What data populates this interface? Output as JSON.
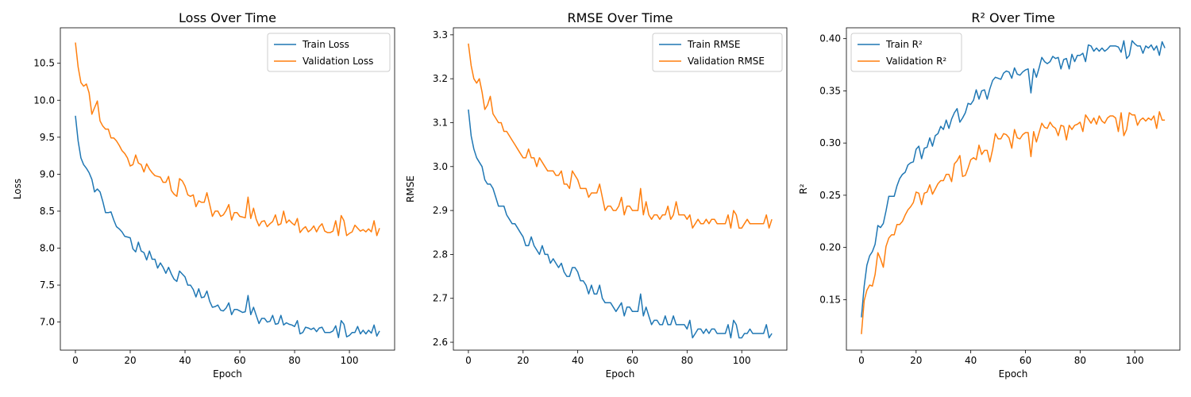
{
  "colors": {
    "train": "#1f77b4",
    "validation": "#ff7f0e"
  },
  "chart_data": [
    {
      "type": "line",
      "title": "Loss Over Time",
      "xlabel": "Epoch",
      "ylabel": "Loss",
      "xlim": [
        -5.5,
        116.5
      ],
      "ylim": [
        6.62,
        10.98
      ],
      "xticks": [
        0,
        20,
        40,
        60,
        80,
        100
      ],
      "yticks": [
        7.0,
        7.5,
        8.0,
        8.5,
        9.0,
        9.5,
        10.0,
        10.5
      ],
      "ytick_labels": [
        "7.0",
        "7.5",
        "8.0",
        "8.5",
        "9.0",
        "9.5",
        "10.0",
        "10.5"
      ],
      "legend_position": "top-right",
      "series": [
        {
          "name": "Train Loss",
          "color": "#1f77b4",
          "values": [
            9.79,
            9.45,
            9.22,
            9.13,
            9.08,
            9.02,
            8.93,
            8.76,
            8.8,
            8.76,
            8.63,
            8.48,
            8.48,
            8.49,
            8.38,
            8.29,
            8.26,
            8.22,
            8.16,
            8.15,
            8.14,
            7.99,
            7.95,
            8.08,
            7.96,
            7.94,
            7.84,
            7.96,
            7.85,
            7.85,
            7.73,
            7.8,
            7.74,
            7.66,
            7.74,
            7.65,
            7.58,
            7.55,
            7.69,
            7.65,
            7.61,
            7.5,
            7.5,
            7.44,
            7.34,
            7.45,
            7.33,
            7.34,
            7.42,
            7.28,
            7.2,
            7.21,
            7.23,
            7.16,
            7.15,
            7.19,
            7.26,
            7.1,
            7.17,
            7.17,
            7.15,
            7.13,
            7.14,
            7.36,
            7.1,
            7.2,
            7.09,
            6.98,
            7.05,
            7.05,
            7.0,
            7.01,
            7.09,
            6.97,
            6.98,
            7.09,
            6.96,
            6.99,
            6.97,
            6.96,
            6.94,
            7.02,
            6.84,
            6.86,
            6.93,
            6.92,
            6.9,
            6.92,
            6.87,
            6.92,
            6.93,
            6.86,
            6.86,
            6.86,
            6.88,
            6.95,
            6.79,
            7.02,
            6.97,
            6.8,
            6.82,
            6.86,
            6.86,
            6.94,
            6.84,
            6.89,
            6.84,
            6.89,
            6.85,
            6.96,
            6.81,
            6.88
          ]
        },
        {
          "name": "Validation Loss",
          "color": "#ff7f0e",
          "values": [
            10.78,
            10.45,
            10.24,
            10.19,
            10.22,
            10.1,
            9.81,
            9.9,
            9.99,
            9.72,
            9.65,
            9.61,
            9.61,
            9.49,
            9.49,
            9.45,
            9.39,
            9.32,
            9.28,
            9.22,
            9.11,
            9.13,
            9.26,
            9.15,
            9.13,
            9.03,
            9.14,
            9.07,
            9.02,
            8.98,
            8.97,
            8.96,
            8.89,
            8.89,
            8.97,
            8.78,
            8.73,
            8.7,
            8.94,
            8.91,
            8.84,
            8.72,
            8.7,
            8.72,
            8.56,
            8.64,
            8.62,
            8.62,
            8.75,
            8.59,
            8.43,
            8.5,
            8.5,
            8.43,
            8.45,
            8.51,
            8.59,
            8.38,
            8.48,
            8.48,
            8.43,
            8.42,
            8.41,
            8.69,
            8.4,
            8.54,
            8.39,
            8.3,
            8.36,
            8.37,
            8.29,
            8.33,
            8.36,
            8.45,
            8.31,
            8.33,
            8.5,
            8.34,
            8.38,
            8.34,
            8.31,
            8.4,
            8.21,
            8.26,
            8.29,
            8.22,
            8.25,
            8.3,
            8.22,
            8.29,
            8.33,
            8.23,
            8.21,
            8.21,
            8.23,
            8.37,
            8.17,
            8.44,
            8.37,
            8.17,
            8.2,
            8.22,
            8.31,
            8.27,
            8.23,
            8.25,
            8.22,
            8.26,
            8.22,
            8.37,
            8.17,
            8.27
          ]
        }
      ]
    },
    {
      "type": "line",
      "title": "RMSE Over Time",
      "xlabel": "Epoch",
      "ylabel": "RMSE",
      "xlim": [
        -5.5,
        116.5
      ],
      "ylim": [
        2.582,
        3.316
      ],
      "xticks": [
        0,
        20,
        40,
        60,
        80,
        100
      ],
      "yticks": [
        2.6,
        2.7,
        2.8,
        2.9,
        3.0,
        3.1,
        3.2,
        3.3
      ],
      "ytick_labels": [
        "2.6",
        "2.7",
        "2.8",
        "2.9",
        "3.0",
        "3.1",
        "3.2",
        "3.3"
      ],
      "legend_position": "top-right",
      "series": [
        {
          "name": "Train RMSE",
          "color": "#1f77b4",
          "values": [
            3.13,
            3.07,
            3.04,
            3.02,
            3.01,
            3.0,
            2.97,
            2.96,
            2.96,
            2.95,
            2.93,
            2.91,
            2.91,
            2.91,
            2.89,
            2.88,
            2.87,
            2.87,
            2.86,
            2.85,
            2.84,
            2.82,
            2.82,
            2.84,
            2.82,
            2.81,
            2.8,
            2.82,
            2.8,
            2.8,
            2.78,
            2.79,
            2.78,
            2.77,
            2.78,
            2.76,
            2.75,
            2.75,
            2.77,
            2.77,
            2.76,
            2.74,
            2.74,
            2.73,
            2.71,
            2.73,
            2.71,
            2.71,
            2.73,
            2.7,
            2.69,
            2.69,
            2.69,
            2.68,
            2.67,
            2.68,
            2.69,
            2.66,
            2.68,
            2.68,
            2.67,
            2.67,
            2.67,
            2.71,
            2.66,
            2.68,
            2.66,
            2.64,
            2.65,
            2.65,
            2.64,
            2.64,
            2.66,
            2.64,
            2.64,
            2.66,
            2.64,
            2.64,
            2.64,
            2.64,
            2.63,
            2.65,
            2.61,
            2.62,
            2.63,
            2.63,
            2.62,
            2.63,
            2.62,
            2.63,
            2.63,
            2.62,
            2.62,
            2.62,
            2.62,
            2.64,
            2.61,
            2.65,
            2.64,
            2.61,
            2.61,
            2.62,
            2.62,
            2.63,
            2.62,
            2.62,
            2.62,
            2.62,
            2.62,
            2.64,
            2.61,
            2.62
          ]
        },
        {
          "name": "Validation RMSE",
          "color": "#ff7f0e",
          "values": [
            3.28,
            3.23,
            3.2,
            3.19,
            3.2,
            3.17,
            3.13,
            3.14,
            3.16,
            3.12,
            3.11,
            3.1,
            3.1,
            3.08,
            3.08,
            3.07,
            3.06,
            3.05,
            3.04,
            3.03,
            3.02,
            3.02,
            3.04,
            3.02,
            3.02,
            3.0,
            3.02,
            3.01,
            3.0,
            2.99,
            2.99,
            2.99,
            2.98,
            2.98,
            2.99,
            2.96,
            2.96,
            2.95,
            2.99,
            2.98,
            2.97,
            2.95,
            2.95,
            2.95,
            2.93,
            2.94,
            2.94,
            2.94,
            2.96,
            2.93,
            2.9,
            2.91,
            2.91,
            2.9,
            2.9,
            2.91,
            2.93,
            2.89,
            2.91,
            2.91,
            2.9,
            2.9,
            2.9,
            2.95,
            2.89,
            2.92,
            2.89,
            2.88,
            2.89,
            2.89,
            2.88,
            2.89,
            2.89,
            2.91,
            2.88,
            2.89,
            2.92,
            2.89,
            2.89,
            2.89,
            2.88,
            2.89,
            2.86,
            2.87,
            2.88,
            2.87,
            2.87,
            2.88,
            2.87,
            2.88,
            2.88,
            2.87,
            2.87,
            2.87,
            2.87,
            2.89,
            2.86,
            2.9,
            2.89,
            2.86,
            2.86,
            2.87,
            2.88,
            2.87,
            2.87,
            2.87,
            2.87,
            2.87,
            2.87,
            2.89,
            2.86,
            2.88
          ]
        }
      ]
    },
    {
      "type": "line",
      "title": "R² Over Time",
      "xlabel": "Epoch",
      "ylabel": "R²",
      "xlim": [
        -5.5,
        116.5
      ],
      "ylim": [
        0.1016,
        0.4104
      ],
      "xticks": [
        0,
        20,
        40,
        60,
        80,
        100
      ],
      "yticks": [
        0.15,
        0.2,
        0.25,
        0.3,
        0.35,
        0.4
      ],
      "ytick_labels": [
        "0.15",
        "0.20",
        "0.25",
        "0.30",
        "0.35",
        "0.40"
      ],
      "legend_position": "top-left",
      "series": [
        {
          "name": "Train R²",
          "color": "#1f77b4",
          "values": [
            0.133,
            0.163,
            0.183,
            0.192,
            0.196,
            0.203,
            0.221,
            0.219,
            0.223,
            0.235,
            0.249,
            0.249,
            0.249,
            0.259,
            0.266,
            0.27,
            0.272,
            0.279,
            0.281,
            0.282,
            0.294,
            0.297,
            0.285,
            0.295,
            0.296,
            0.305,
            0.297,
            0.307,
            0.309,
            0.316,
            0.313,
            0.322,
            0.314,
            0.323,
            0.329,
            0.333,
            0.32,
            0.324,
            0.329,
            0.338,
            0.337,
            0.341,
            0.351,
            0.342,
            0.35,
            0.351,
            0.342,
            0.352,
            0.36,
            0.363,
            0.362,
            0.361,
            0.367,
            0.369,
            0.368,
            0.362,
            0.372,
            0.366,
            0.365,
            0.368,
            0.37,
            0.371,
            0.348,
            0.371,
            0.363,
            0.372,
            0.382,
            0.378,
            0.376,
            0.378,
            0.383,
            0.381,
            0.382,
            0.371,
            0.38,
            0.381,
            0.371,
            0.385,
            0.378,
            0.384,
            0.384,
            0.386,
            0.378,
            0.394,
            0.393,
            0.388,
            0.391,
            0.388,
            0.391,
            0.388,
            0.39,
            0.393,
            0.393,
            0.393,
            0.392,
            0.387,
            0.398,
            0.381,
            0.384,
            0.398,
            0.395,
            0.393,
            0.393,
            0.386,
            0.393,
            0.391,
            0.394,
            0.389,
            0.393,
            0.384,
            0.397,
            0.391
          ]
        },
        {
          "name": "Validation R²",
          "color": "#ff7f0e",
          "values": [
            0.117,
            0.149,
            0.159,
            0.164,
            0.163,
            0.174,
            0.195,
            0.189,
            0.181,
            0.201,
            0.209,
            0.212,
            0.212,
            0.222,
            0.222,
            0.225,
            0.231,
            0.236,
            0.239,
            0.243,
            0.253,
            0.252,
            0.241,
            0.252,
            0.253,
            0.26,
            0.251,
            0.256,
            0.261,
            0.264,
            0.264,
            0.27,
            0.27,
            0.263,
            0.28,
            0.283,
            0.288,
            0.268,
            0.269,
            0.276,
            0.284,
            0.286,
            0.284,
            0.298,
            0.289,
            0.293,
            0.293,
            0.282,
            0.294,
            0.309,
            0.304,
            0.304,
            0.309,
            0.308,
            0.305,
            0.295,
            0.313,
            0.305,
            0.304,
            0.308,
            0.31,
            0.31,
            0.287,
            0.311,
            0.301,
            0.31,
            0.319,
            0.315,
            0.314,
            0.32,
            0.316,
            0.314,
            0.307,
            0.317,
            0.316,
            0.303,
            0.317,
            0.313,
            0.317,
            0.318,
            0.32,
            0.311,
            0.327,
            0.323,
            0.319,
            0.324,
            0.318,
            0.326,
            0.321,
            0.319,
            0.324,
            0.326,
            0.326,
            0.324,
            0.311,
            0.329,
            0.307,
            0.313,
            0.329,
            0.327,
            0.327,
            0.317,
            0.322,
            0.324,
            0.321,
            0.324,
            0.322,
            0.326,
            0.314,
            0.33,
            0.322,
            0.322
          ]
        }
      ]
    }
  ]
}
